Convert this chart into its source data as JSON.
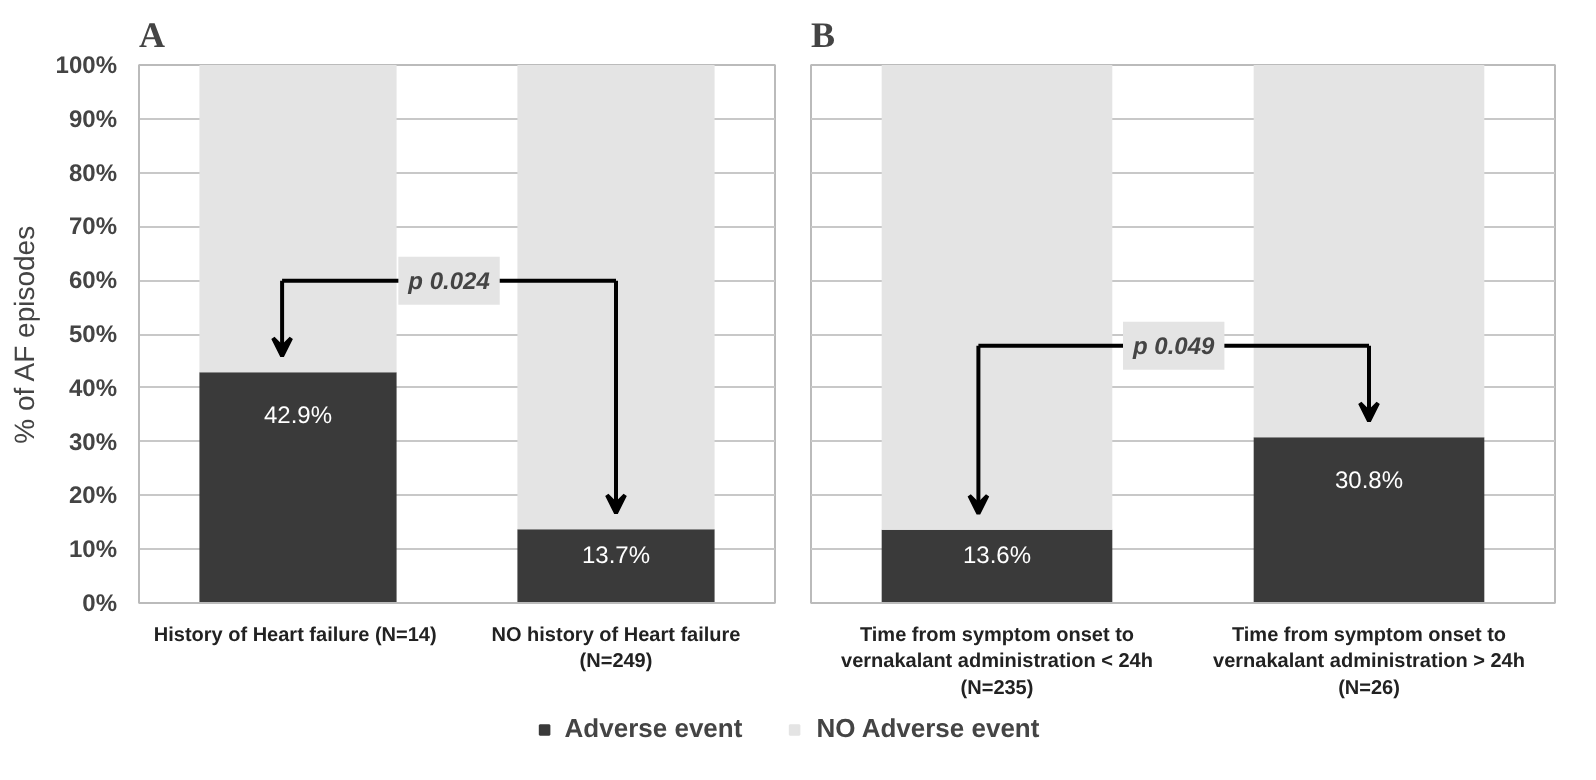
{
  "chart_data": [
    {
      "type": "bar",
      "title": "A",
      "ylabel": "% of AF episodes",
      "stacked": true,
      "categories": [
        "History of Heart failure  (N=14)",
        "NO history of Heart failure\n(N=249)"
      ],
      "series": [
        {
          "name": "Adverse event",
          "color": "#3a3a3a",
          "values": [
            42.9,
            13.7
          ],
          "value_labels": [
            "42.9%",
            "13.7%"
          ]
        },
        {
          "name": "NO Adverse event",
          "color": "#e4e4e4",
          "values": [
            57.1,
            86.3
          ]
        }
      ],
      "ylim": [
        0,
        100
      ],
      "yticks": [
        {
          "value": 0,
          "label": "0%"
        },
        {
          "value": 10,
          "label": "10%"
        },
        {
          "value": 20,
          "label": "20%"
        },
        {
          "value": 30,
          "label": "30%"
        },
        {
          "value": 40,
          "label": "40%"
        },
        {
          "value": 50,
          "label": "50%"
        },
        {
          "value": 60,
          "label": "60%"
        },
        {
          "value": 70,
          "label": "70%"
        },
        {
          "value": 80,
          "label": "80%"
        },
        {
          "value": 90,
          "label": "90%"
        },
        {
          "value": 100,
          "label": "100%"
        }
      ],
      "annotations": [
        "p 0.024"
      ],
      "grid": "y",
      "legend": "bottom"
    },
    {
      "type": "bar",
      "title": "B",
      "stacked": true,
      "categories": [
        "Time from symptom onset to\nvernakalant administration < 24h\n(N=235)",
        "Time from symptom onset to\nvernakalant administration > 24h\n(N=26)"
      ],
      "series": [
        {
          "color": "#3a3a3a",
          "values": [
            13.6,
            30.8
          ],
          "value_labels": [
            "13.6%",
            "30.8%"
          ]
        },
        {
          "color": "#e4e4e4",
          "values": [
            86.4,
            69.2
          ]
        }
      ],
      "ylim": [
        0,
        100
      ],
      "yticks": [
        {
          "value": 0,
          "label": null
        },
        {
          "value": 10,
          "label": null
        },
        {
          "value": 20,
          "label": null
        },
        {
          "value": 30,
          "label": null
        },
        {
          "value": 40,
          "label": null
        },
        {
          "value": 50,
          "label": null
        },
        {
          "value": 60,
          "label": null
        },
        {
          "value": 70,
          "label": null
        },
        {
          "value": 80,
          "label": null
        },
        {
          "value": 90,
          "label": null
        },
        {
          "value": 100,
          "label": null
        }
      ],
      "annotations": [
        "p 0.049"
      ],
      "grid": "y",
      "tick_labels": "x"
    }
  ]
}
